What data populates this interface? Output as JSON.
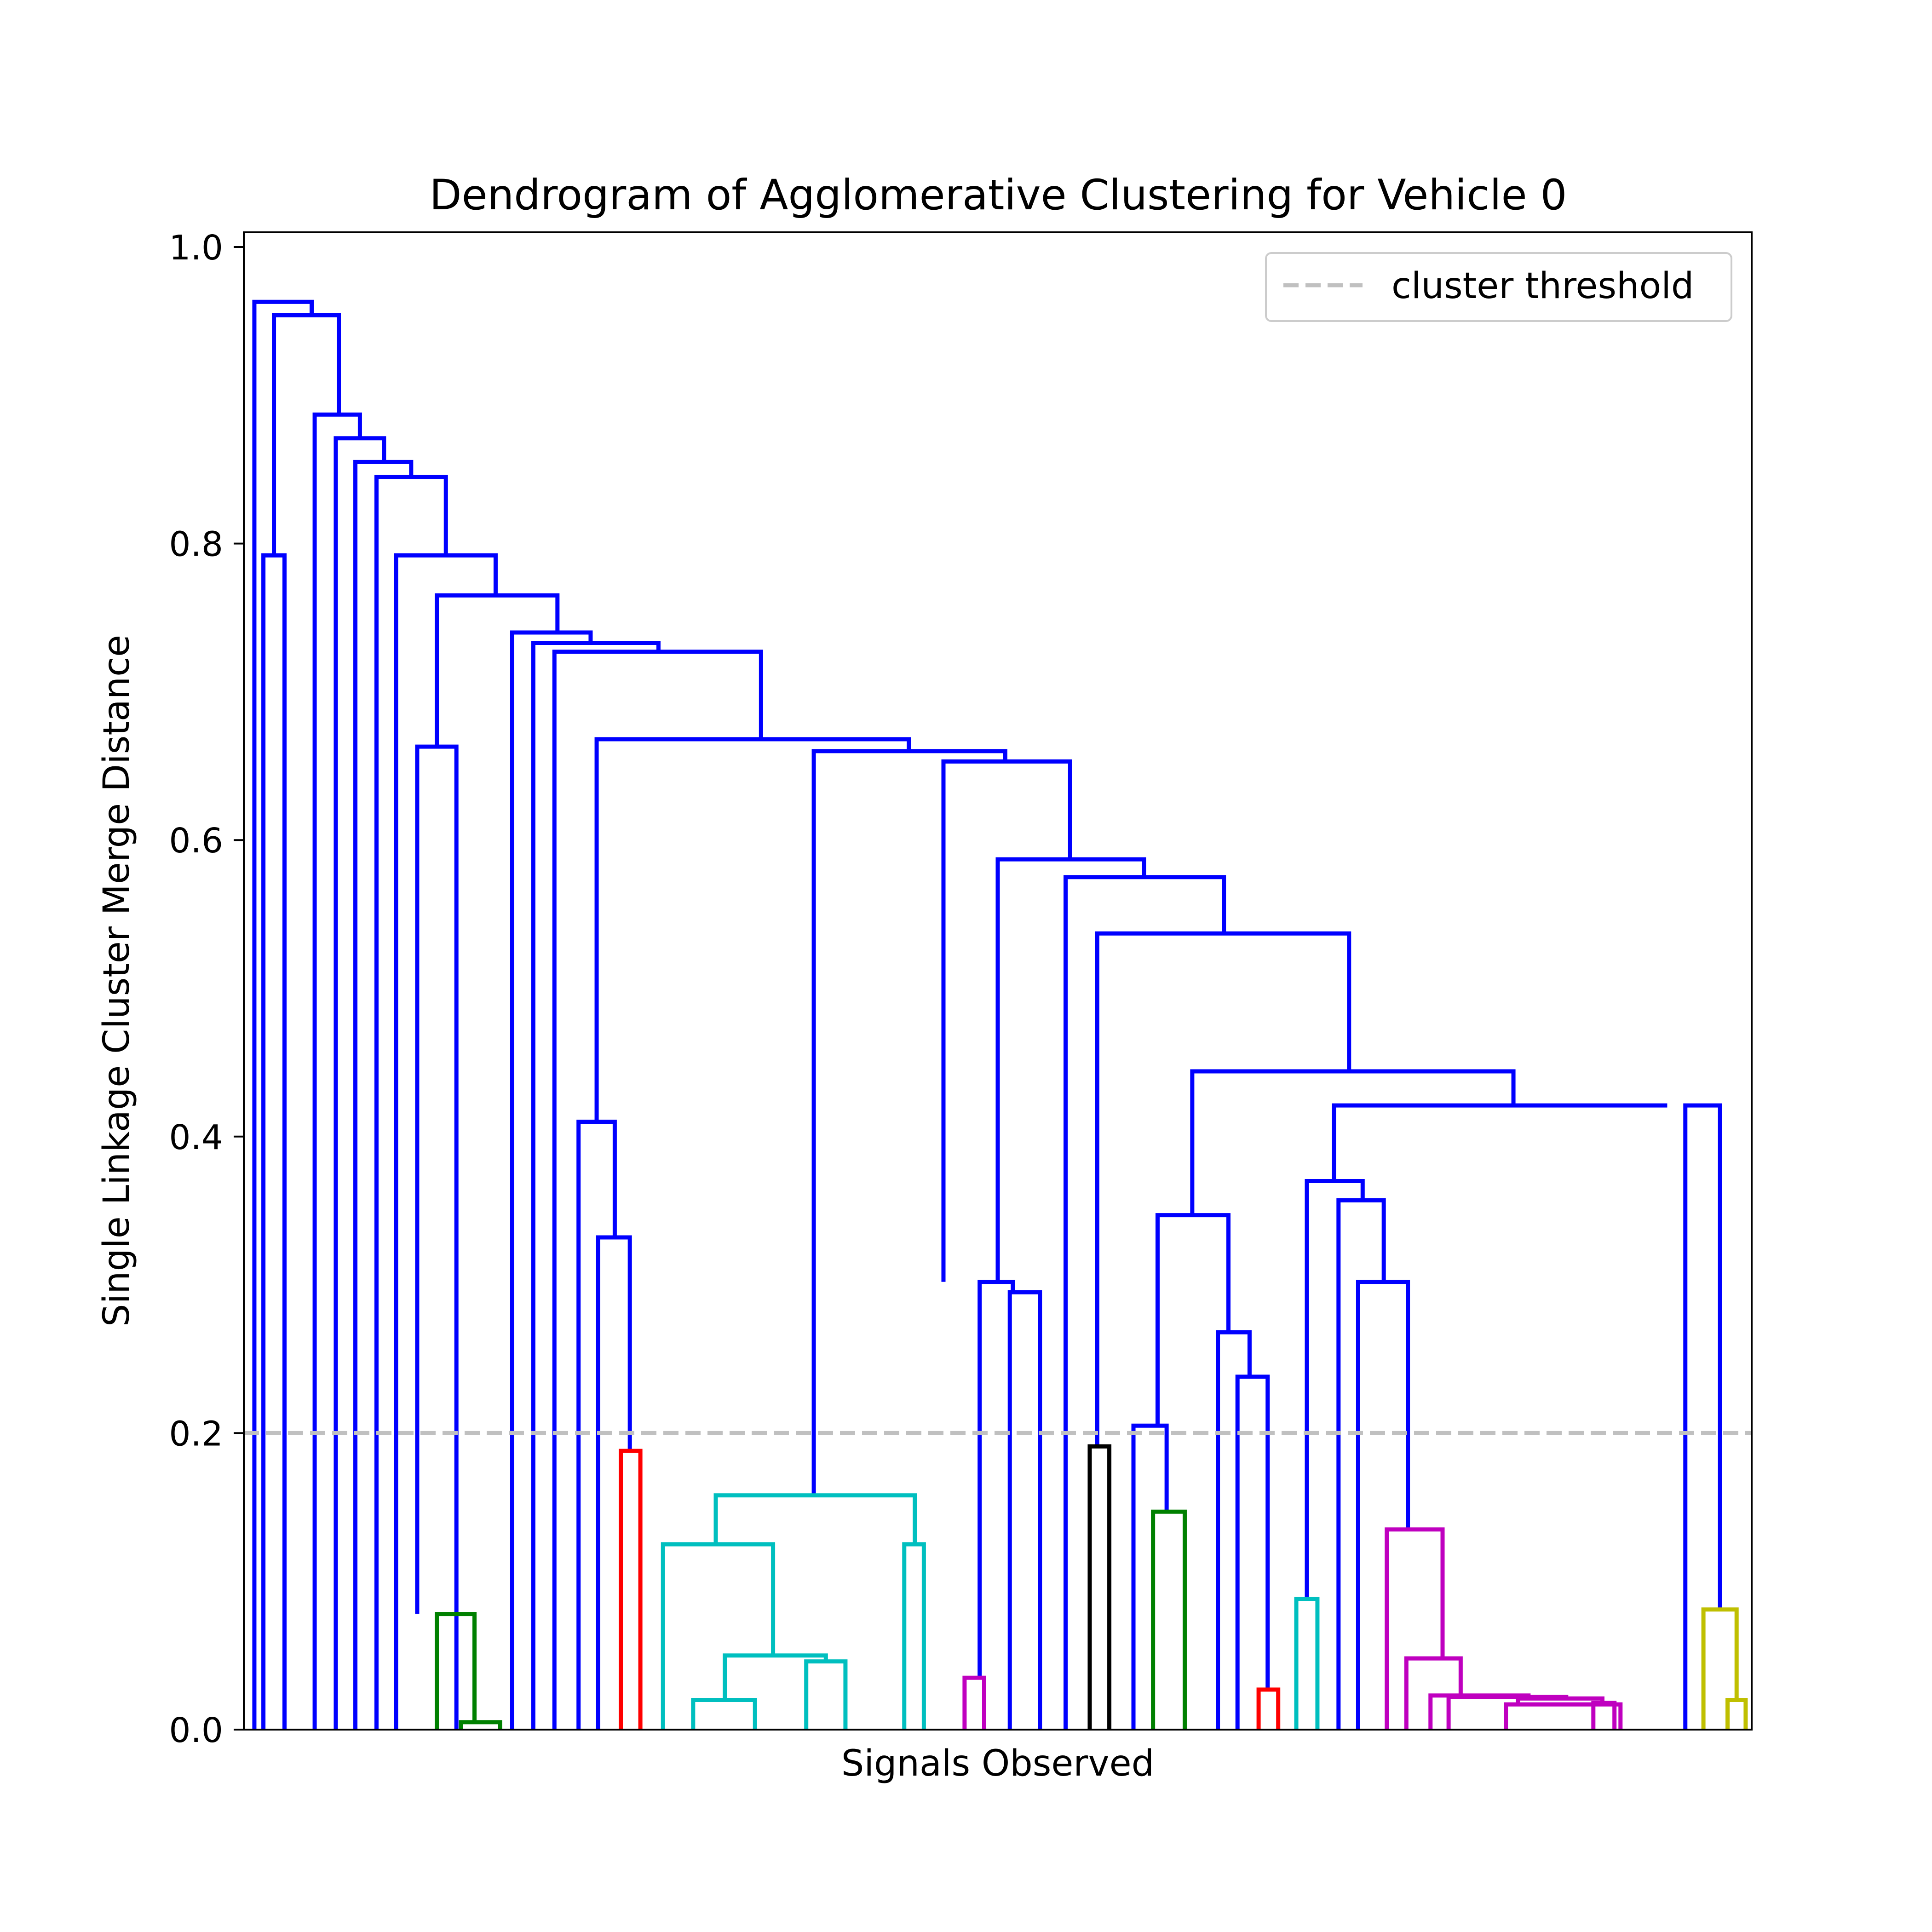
{
  "chart_data": {
    "type": "dendrogram",
    "title": "Dendrogram of Agglomerative Clustering for Vehicle 0",
    "xlabel": "Signals Observed",
    "ylabel": "Single Linkage Cluster Merge Distance",
    "ylim": [
      0,
      1.01
    ],
    "xlim": [
      0,
      100
    ],
    "yticks": [
      "0.0",
      "0.2",
      "0.4",
      "0.6",
      "0.8",
      "1.0"
    ],
    "ytick_values": [
      0,
      0.2,
      0.4,
      0.6,
      0.8,
      1.0
    ],
    "grid": false,
    "threshold": {
      "value": 0.2,
      "label": "cluster threshold",
      "color": "#c0c0c0",
      "style": "dashed"
    },
    "legend": {
      "location": "top-right",
      "entries": [
        "cluster threshold"
      ]
    },
    "colors": {
      "b": "#0000ff",
      "g": "#008000",
      "r": "#ff0000",
      "c": "#00bfbf",
      "m": "#bf00bf",
      "k": "#000000",
      "y": "#bfbf00"
    },
    "links": [
      {
        "xl": 0.7,
        "xr": 4.5,
        "h": 0.963,
        "hl": 0,
        "hr": 0.954,
        "color": "b"
      },
      {
        "xl": 2.0,
        "xr": 6.3,
        "h": 0.954,
        "hl": 0.792,
        "hr": 0.887,
        "color": "b"
      },
      {
        "xl": 1.3,
        "xr": 2.7,
        "h": 0.792,
        "hl": 0,
        "hr": 0,
        "color": "b"
      },
      {
        "xl": 4.7,
        "xr": 7.7,
        "h": 0.887,
        "hl": 0,
        "hr": 0.871,
        "color": "b"
      },
      {
        "xl": 6.1,
        "xr": 9.3,
        "h": 0.871,
        "hl": 0,
        "hr": 0.855,
        "color": "b"
      },
      {
        "xl": 7.4,
        "xr": 11.1,
        "h": 0.855,
        "hl": 0,
        "hr": 0.845,
        "color": "b"
      },
      {
        "xl": 8.8,
        "xr": 13.4,
        "h": 0.845,
        "hl": 0,
        "hr": 0.792,
        "color": "b"
      },
      {
        "xl": 10.1,
        "xr": 16.7,
        "h": 0.792,
        "hl": 0,
        "hr": 0.765,
        "color": "b"
      },
      {
        "xl": 12.8,
        "xr": 20.8,
        "h": 0.765,
        "hl": 0.663,
        "hr": 0.74,
        "color": "b"
      },
      {
        "xl": 11.5,
        "xr": 14.1,
        "h": 0.663,
        "hl": 0.078,
        "hr": 0,
        "color": "b"
      },
      {
        "xl": 17.8,
        "xr": 23.0,
        "h": 0.74,
        "hl": 0,
        "hr": 0.733,
        "color": "b"
      },
      {
        "xl": 19.2,
        "xr": 27.5,
        "h": 0.733,
        "hl": 0,
        "hr": 0.727,
        "color": "b"
      },
      {
        "xl": 20.6,
        "xr": 34.3,
        "h": 0.727,
        "hl": 0,
        "hr": 0.668,
        "color": "b"
      },
      {
        "xl": 23.4,
        "xr": 44.1,
        "h": 0.668,
        "hl": 0.41,
        "hr": 0.66,
        "color": "b"
      },
      {
        "xl": 22.2,
        "xr": 24.6,
        "h": 0.41,
        "hl": 0,
        "hr": 0.332,
        "color": "b"
      },
      {
        "xl": 23.5,
        "xr": 25.6,
        "h": 0.332,
        "hl": 0,
        "hr": 0.188,
        "color": "b"
      },
      {
        "xl": 37.8,
        "xr": 50.5,
        "h": 0.66,
        "hl": 0.158,
        "hr": 0.653,
        "color": "b"
      },
      {
        "xl": 46.4,
        "xr": 54.8,
        "h": 0.653,
        "hl": 0.302,
        "hr": 0.587,
        "color": "b"
      },
      {
        "xl": 48.8,
        "xr": 51.0,
        "h": 0.302,
        "hl": 0.035,
        "hr": 0.295,
        "color": "b"
      },
      {
        "xl": 50.8,
        "xr": 52.8,
        "h": 0.295,
        "hl": 0,
        "hr": 0,
        "color": "b"
      },
      {
        "xl": 50.0,
        "xr": 59.7,
        "h": 0.587,
        "hl": 0.302,
        "hr": 0.575,
        "color": "b"
      },
      {
        "xl": 54.5,
        "xr": 65.0,
        "h": 0.575,
        "hl": 0,
        "hr": 0.537,
        "color": "b"
      },
      {
        "xl": 56.6,
        "xr": 73.3,
        "h": 0.537,
        "hl": 0.191,
        "hr": 0.444,
        "color": "b"
      },
      {
        "xl": 62.9,
        "xr": 84.2,
        "h": 0.444,
        "hl": 0.347,
        "hr": 0.421,
        "color": "b"
      },
      {
        "xl": 60.6,
        "xr": 65.3,
        "h": 0.347,
        "hl": 0.205,
        "hr": 0.268,
        "color": "b"
      },
      {
        "xl": 59.0,
        "xr": 61.2,
        "h": 0.205,
        "hl": 0,
        "hr": 0.147,
        "color": "b"
      },
      {
        "xl": 64.6,
        "xr": 66.7,
        "h": 0.268,
        "hl": 0,
        "hr": 0.238,
        "color": "b"
      },
      {
        "xl": 65.9,
        "xr": 67.9,
        "h": 0.238,
        "hl": 0,
        "hr": 0.027,
        "color": "b"
      },
      {
        "xl": 72.3,
        "xr": 94.4,
        "h": 0.421,
        "hl": 0.37,
        "hr": 0.421,
        "color": "b"
      },
      {
        "xl": 70.5,
        "xr": 74.2,
        "h": 0.37,
        "hl": 0.088,
        "hr": 0.357,
        "color": "b"
      },
      {
        "xl": 72.6,
        "xr": 75.6,
        "h": 0.357,
        "hl": 0,
        "hr": 0.302,
        "color": "b"
      },
      {
        "xl": 73.9,
        "xr": 77.2,
        "h": 0.302,
        "hl": 0,
        "hr": 0.135,
        "color": "b"
      },
      {
        "xl": 95.6,
        "xr": 97.9,
        "h": 0.421,
        "hl": 0,
        "hr": 0.081,
        "color": "b"
      },
      {
        "xl": 12.8,
        "xr": 15.3,
        "h": 0.078,
        "hl": 0,
        "hr": 0.005,
        "color": "g"
      },
      {
        "xl": 14.4,
        "xr": 17.0,
        "h": 0.005,
        "hl": 0,
        "hr": 0,
        "color": "g"
      },
      {
        "xl": 25.0,
        "xr": 26.3,
        "h": 0.188,
        "hl": 0,
        "hr": 0,
        "color": "r"
      },
      {
        "xl": 31.3,
        "xr": 44.5,
        "h": 0.158,
        "hl": 0.125,
        "hr": 0.125,
        "color": "c"
      },
      {
        "xl": 27.8,
        "xr": 35.1,
        "h": 0.125,
        "hl": 0,
        "hr": 0.05,
        "color": "c"
      },
      {
        "xl": 31.9,
        "xr": 38.6,
        "h": 0.05,
        "hl": 0.02,
        "hr": 0.046,
        "color": "c"
      },
      {
        "xl": 29.8,
        "xr": 33.9,
        "h": 0.02,
        "hl": 0,
        "hr": 0,
        "color": "c"
      },
      {
        "xl": 37.3,
        "xr": 39.9,
        "h": 0.046,
        "hl": 0,
        "hr": 0,
        "color": "c"
      },
      {
        "xl": 43.8,
        "xr": 45.1,
        "h": 0.125,
        "hl": 0,
        "hr": 0,
        "color": "c"
      },
      {
        "xl": 47.8,
        "xr": 49.1,
        "h": 0.035,
        "hl": 0,
        "hr": 0,
        "color": "m"
      },
      {
        "xl": 56.1,
        "xr": 57.4,
        "h": 0.191,
        "hl": 0,
        "hr": 0,
        "color": "k"
      },
      {
        "xl": 60.3,
        "xr": 62.4,
        "h": 0.147,
        "hl": 0,
        "hr": 0,
        "color": "g"
      },
      {
        "xl": 67.3,
        "xr": 68.6,
        "h": 0.027,
        "hl": 0,
        "hr": 0,
        "color": "r"
      },
      {
        "xl": 69.8,
        "xr": 71.2,
        "h": 0.088,
        "hl": 0,
        "hr": 0,
        "color": "c"
      },
      {
        "xl": 75.8,
        "xr": 79.5,
        "h": 0.135,
        "hl": 0,
        "hr": 0.048,
        "color": "m"
      },
      {
        "xl": 77.1,
        "xr": 80.7,
        "h": 0.048,
        "hl": 0,
        "hr": 0.023,
        "color": "m"
      },
      {
        "xl": 78.7,
        "xr": 85.2,
        "h": 0.023,
        "hl": 0,
        "hr": 0.022,
        "color": "m"
      },
      {
        "xl": 79.9,
        "xr": 87.7,
        "h": 0.022,
        "hl": 0,
        "hr": 0.021,
        "color": "m"
      },
      {
        "xl": 84.5,
        "xr": 90.1,
        "h": 0.021,
        "hl": 0.017,
        "hr": 0.018,
        "color": "m"
      },
      {
        "xl": 83.7,
        "xr": 91.3,
        "h": 0.017,
        "hl": 0,
        "hr": 0,
        "color": "m"
      },
      {
        "xl": 89.5,
        "xr": 90.9,
        "h": 0.018,
        "hl": 0,
        "hr": 0,
        "color": "m"
      },
      {
        "xl": 96.8,
        "xr": 99.0,
        "h": 0.081,
        "hl": 0,
        "hr": 0.02,
        "color": "y"
      },
      {
        "xl": 98.4,
        "xr": 99.6,
        "h": 0.02,
        "hl": 0,
        "hr": 0,
        "color": "y"
      }
    ]
  }
}
